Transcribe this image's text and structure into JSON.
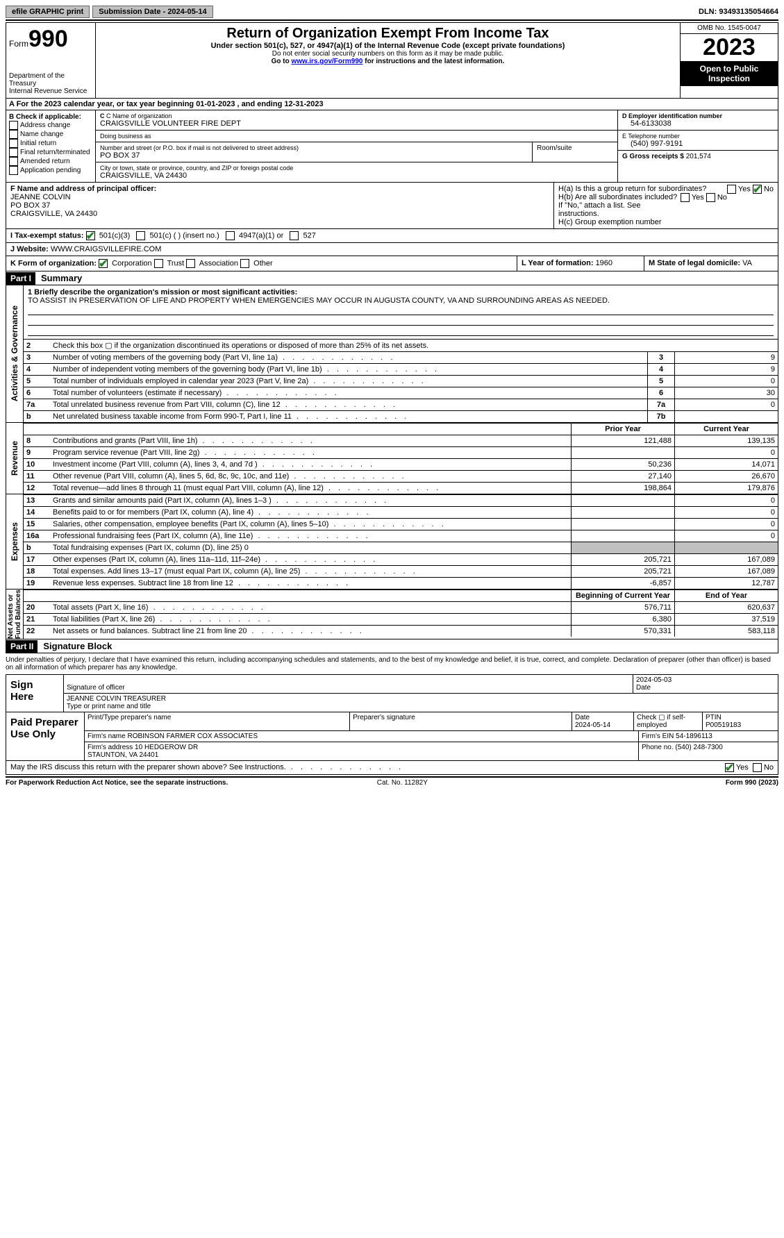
{
  "topbar": {
    "efile": "efile GRAPHIC print",
    "submission": "Submission Date - 2024-05-14",
    "dln": "DLN: 93493135054664"
  },
  "header": {
    "form_label": "Form",
    "form_num": "990",
    "dept": "Department of the Treasury\nInternal Revenue Service",
    "title": "Return of Organization Exempt From Income Tax",
    "sub": "Under section 501(c), 527, or 4947(a)(1) of the Internal Revenue Code (except private foundations)",
    "ssn": "Do not enter social security numbers on this form as it may be made public.",
    "goto": "Go to ",
    "goto_link": "www.irs.gov/Form990",
    "goto_tail": " for instructions and the latest information.",
    "omb": "OMB No. 1545-0047",
    "year": "2023",
    "inspection": "Open to Public Inspection"
  },
  "line_a": "A For the 2023 calendar year, or tax year beginning 01-01-2023    , and ending 12-31-2023",
  "box_b": {
    "title": "B Check if applicable:",
    "items": [
      "Address change",
      "Name change",
      "Initial return",
      "Final return/terminated",
      "Amended return",
      "Application pending"
    ]
  },
  "box_c": {
    "name_lbl": "C Name of organization",
    "name": "CRAIGSVILLE VOLUNTEER FIRE DEPT",
    "dba_lbl": "Doing business as",
    "dba": "",
    "street_lbl": "Number and street (or P.O. box if mail is not delivered to street address)",
    "street": "PO BOX 37",
    "room_lbl": "Room/suite",
    "city_lbl": "City or town, state or province, country, and ZIP or foreign postal code",
    "city": "CRAIGSVILLE, VA  24430"
  },
  "box_d": {
    "ein_lbl": "D Employer identification number",
    "ein": "54-6133038",
    "phone_lbl": "E Telephone number",
    "phone": "(540) 997-9191",
    "gross_lbl": "G Gross receipts $ ",
    "gross": "201,574"
  },
  "box_f": {
    "lbl": "F Name and address of principal officer:",
    "name": "JEANNE COLVIN",
    "addr1": "PO BOX 37",
    "addr2": "CRAIGSVILLE, VA  24430"
  },
  "box_h": {
    "ha": "H(a)  Is this a group return for subordinates?",
    "hb": "H(b)  Are all subordinates included?",
    "hb_note": "If \"No,\" attach a list. See instructions.",
    "hc": "H(c)  Group exemption number ",
    "yes": "Yes",
    "no": "No"
  },
  "line_i": {
    "lbl": "I   Tax-exempt status:",
    "o1": "501(c)(3)",
    "o2": "501(c) (  ) (insert no.)",
    "o3": "4947(a)(1) or",
    "o4": "527"
  },
  "line_j": {
    "lbl": "J   Website: ",
    "val": "WWW.CRAIGSVILLEFIRE.COM"
  },
  "line_k": {
    "lbl": "K Form of organization:",
    "o1": "Corporation",
    "o2": "Trust",
    "o3": "Association",
    "o4": "Other"
  },
  "line_l": {
    "lbl": "L Year of formation: ",
    "val": "1960"
  },
  "line_m": {
    "lbl": "M State of legal domicile: ",
    "val": "VA"
  },
  "part1": {
    "tag": "Part I",
    "title": "Summary"
  },
  "mission": {
    "q": "1  Briefly describe the organization's mission or most significant activities:",
    "text": "TO ASSIST IN PRESERVATION OF LIFE AND PROPERTY WHEN EMERGENCIES MAY OCCUR IN AUGUSTA COUNTY, VA AND SURROUNDING AREAS AS NEEDED."
  },
  "gov_lbl": "Activities & Governance",
  "gov_rows": [
    {
      "n": "2",
      "d": "Check this box ▢  if the organization discontinued its operations or disposed of more than 25% of its net assets."
    },
    {
      "n": "3",
      "d": "Number of voting members of the governing body (Part VI, line 1a)",
      "k": "3",
      "v": "9"
    },
    {
      "n": "4",
      "d": "Number of independent voting members of the governing body (Part VI, line 1b)",
      "k": "4",
      "v": "9"
    },
    {
      "n": "5",
      "d": "Total number of individuals employed in calendar year 2023 (Part V, line 2a)",
      "k": "5",
      "v": "0"
    },
    {
      "n": "6",
      "d": "Total number of volunteers (estimate if necessary)",
      "k": "6",
      "v": "30"
    },
    {
      "n": "7a",
      "d": "Total unrelated business revenue from Part VIII, column (C), line 12",
      "k": "7a",
      "v": "0"
    },
    {
      "n": "b",
      "d": "Net unrelated business taxable income from Form 990-T, Part I, line 11",
      "k": "7b",
      "v": ""
    }
  ],
  "rev_lbl": "Revenue",
  "py_hdr": "Prior Year",
  "cy_hdr": "Current Year",
  "rev_rows": [
    {
      "n": "8",
      "d": "Contributions and grants (Part VIII, line 1h)",
      "py": "121,488",
      "cy": "139,135"
    },
    {
      "n": "9",
      "d": "Program service revenue (Part VIII, line 2g)",
      "py": "",
      "cy": "0"
    },
    {
      "n": "10",
      "d": "Investment income (Part VIII, column (A), lines 3, 4, and 7d )",
      "py": "50,236",
      "cy": "14,071"
    },
    {
      "n": "11",
      "d": "Other revenue (Part VIII, column (A), lines 5, 6d, 8c, 9c, 10c, and 11e)",
      "py": "27,140",
      "cy": "26,670"
    },
    {
      "n": "12",
      "d": "Total revenue—add lines 8 through 11 (must equal Part VIII, column (A), line 12)",
      "py": "198,864",
      "cy": "179,876"
    }
  ],
  "exp_lbl": "Expenses",
  "exp_rows": [
    {
      "n": "13",
      "d": "Grants and similar amounts paid (Part IX, column (A), lines 1–3 )",
      "py": "",
      "cy": "0"
    },
    {
      "n": "14",
      "d": "Benefits paid to or for members (Part IX, column (A), line 4)",
      "py": "",
      "cy": "0"
    },
    {
      "n": "15",
      "d": "Salaries, other compensation, employee benefits (Part IX, column (A), lines 5–10)",
      "py": "",
      "cy": "0"
    },
    {
      "n": "16a",
      "d": "Professional fundraising fees (Part IX, column (A), line 11e)",
      "py": "",
      "cy": "0"
    },
    {
      "n": "b",
      "d": "Total fundraising expenses (Part IX, column (D), line 25) 0",
      "shade": true
    },
    {
      "n": "17",
      "d": "Other expenses (Part IX, column (A), lines 11a–11d, 11f–24e)",
      "py": "205,721",
      "cy": "167,089"
    },
    {
      "n": "18",
      "d": "Total expenses. Add lines 13–17 (must equal Part IX, column (A), line 25)",
      "py": "205,721",
      "cy": "167,089"
    },
    {
      "n": "19",
      "d": "Revenue less expenses. Subtract line 18 from line 12",
      "py": "-6,857",
      "cy": "12,787"
    }
  ],
  "net_lbl": "Net Assets or\nFund Balances",
  "boy_hdr": "Beginning of Current Year",
  "eoy_hdr": "End of Year",
  "net_rows": [
    {
      "n": "20",
      "d": "Total assets (Part X, line 16)",
      "py": "576,711",
      "cy": "620,637"
    },
    {
      "n": "21",
      "d": "Total liabilities (Part X, line 26)",
      "py": "6,380",
      "cy": "37,519"
    },
    {
      "n": "22",
      "d": "Net assets or fund balances. Subtract line 21 from line 20",
      "py": "570,331",
      "cy": "583,118"
    }
  ],
  "part2": {
    "tag": "Part II",
    "title": "Signature Block"
  },
  "perjury": "Under penalties of perjury, I declare that I have examined this return, including accompanying schedules and statements, and to the best of my knowledge and belief, it is true, correct, and complete. Declaration of preparer (other than officer) is based on all information of which preparer has any knowledge.",
  "sign": {
    "here": "Sign Here",
    "sig_lbl": "Signature of officer",
    "date_lbl": "Date",
    "date": "2024-05-03",
    "name": "JEANNE COLVIN  TREASURER",
    "name_lbl": "Type or print name and title"
  },
  "paid": {
    "here": "Paid Preparer Use Only",
    "pt_lbl": "Print/Type preparer's name",
    "sig_lbl": "Preparer's signature",
    "date_lbl": "Date",
    "date": "2024-05-14",
    "check_lbl": "Check ▢ if self-employed",
    "ptin_lbl": "PTIN",
    "ptin": "P00519183",
    "firm_name_lbl": "Firm's name   ",
    "firm_name": "ROBINSON FARMER COX ASSOCIATES",
    "firm_ein_lbl": "Firm's EIN  ",
    "firm_ein": "54-1896113",
    "firm_addr_lbl": "Firm's address ",
    "firm_addr": "10 HEDGEROW DR\nSTAUNTON, VA  24401",
    "phone_lbl": "Phone no. ",
    "phone": "(540) 248-7300"
  },
  "irs_discuss": "May the IRS discuss this return with the preparer shown above? See Instructions.",
  "footer": {
    "left": "For Paperwork Reduction Act Notice, see the separate instructions.",
    "mid": "Cat. No. 11282Y",
    "right": "Form 990 (2023)"
  }
}
